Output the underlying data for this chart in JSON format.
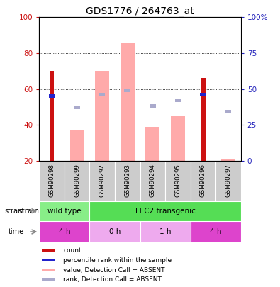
{
  "title": "GDS1776 / 264763_at",
  "samples": [
    "GSM90298",
    "GSM90299",
    "GSM90292",
    "GSM90293",
    "GSM90294",
    "GSM90295",
    "GSM90296",
    "GSM90297"
  ],
  "count_values": [
    70,
    0,
    0,
    0,
    0,
    0,
    66,
    0
  ],
  "rank_values": [
    45,
    0,
    0,
    0,
    0,
    0,
    46,
    0
  ],
  "absent_value_values": [
    0,
    37,
    70,
    86,
    39,
    45,
    0,
    21
  ],
  "absent_rank_values": [
    0,
    37,
    46,
    49,
    38,
    42,
    0,
    34
  ],
  "strain_groups": [
    {
      "label": "wild type",
      "start": 0,
      "end": 2,
      "color": "#88ee88"
    },
    {
      "label": "LEC2 transgenic",
      "start": 2,
      "end": 8,
      "color": "#55dd55"
    }
  ],
  "time_groups": [
    {
      "label": "4 h",
      "start": 0,
      "end": 2,
      "color": "#dd44cc"
    },
    {
      "label": "0 h",
      "start": 2,
      "end": 4,
      "color": "#eeaaee"
    },
    {
      "label": "1 h",
      "start": 4,
      "end": 6,
      "color": "#eeaaee"
    },
    {
      "label": "4 h",
      "start": 6,
      "end": 8,
      "color": "#dd44cc"
    }
  ],
  "left_ylim": [
    20,
    100
  ],
  "right_ylim": [
    0,
    100
  ],
  "left_yticks": [
    20,
    40,
    60,
    80,
    100
  ],
  "right_yticks": [
    0,
    25,
    50,
    75,
    100
  ],
  "right_yticklabels": [
    "0",
    "25",
    "50",
    "75",
    "100%"
  ],
  "color_count": "#cc1111",
  "color_rank": "#2222cc",
  "color_absent_value": "#ffaaaa",
  "color_absent_rank": "#aaaacc",
  "left_tick_color": "#cc1111",
  "right_tick_color": "#2222bb"
}
